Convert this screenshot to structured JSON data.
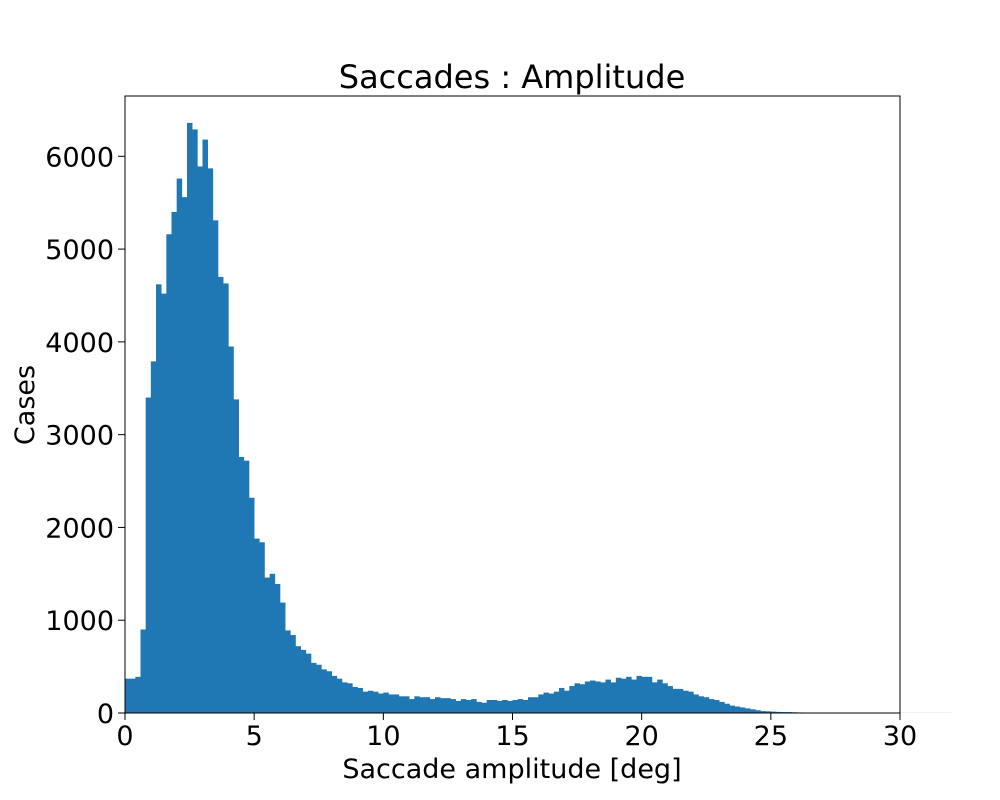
{
  "chart_data": {
    "type": "bar",
    "title": "Saccades : Amplitude",
    "xlabel": "Saccade amplitude [deg]",
    "ylabel": "Cases",
    "xlim": [
      0,
      30
    ],
    "ylim": [
      0,
      6650
    ],
    "xticks": [
      "0",
      "5",
      "10",
      "15",
      "20",
      "25",
      "30"
    ],
    "yticks": [
      "0",
      "1000",
      "2000",
      "3000",
      "4000",
      "5000",
      "6000"
    ],
    "grid": false,
    "bar_color": "#1f77b4",
    "bin_width": 0.2,
    "values": [
      370,
      370,
      390,
      900,
      3400,
      3790,
      4620,
      4520,
      5160,
      5400,
      5760,
      5560,
      6360,
      6290,
      5890,
      6180,
      5870,
      5310,
      4700,
      4630,
      3950,
      3380,
      2760,
      2720,
      2320,
      1880,
      1840,
      1460,
      1500,
      1390,
      1190,
      890,
      840,
      720,
      680,
      640,
      540,
      520,
      470,
      450,
      400,
      370,
      330,
      320,
      280,
      270,
      230,
      240,
      230,
      210,
      220,
      200,
      200,
      180,
      180,
      150,
      180,
      170,
      170,
      150,
      170,
      160,
      160,
      150,
      130,
      150,
      140,
      150,
      120,
      110,
      140,
      140,
      130,
      140,
      130,
      140,
      150,
      140,
      170,
      170,
      200,
      220,
      210,
      230,
      270,
      240,
      290,
      320,
      310,
      340,
      350,
      340,
      330,
      360,
      330,
      380,
      370,
      390,
      360,
      400,
      390,
      390,
      330,
      360,
      320,
      290,
      260,
      260,
      240,
      230,
      200,
      180,
      170,
      150,
      140,
      120,
      100,
      80,
      70,
      60,
      50,
      40,
      30,
      20,
      18,
      15,
      12,
      10,
      10,
      8,
      6,
      5,
      4,
      3,
      2,
      2,
      2,
      1,
      1,
      1,
      1,
      1,
      1,
      1,
      1,
      1,
      1,
      1,
      1,
      1,
      1,
      1,
      1,
      1,
      1,
      1,
      1,
      1,
      1,
      1
    ]
  }
}
